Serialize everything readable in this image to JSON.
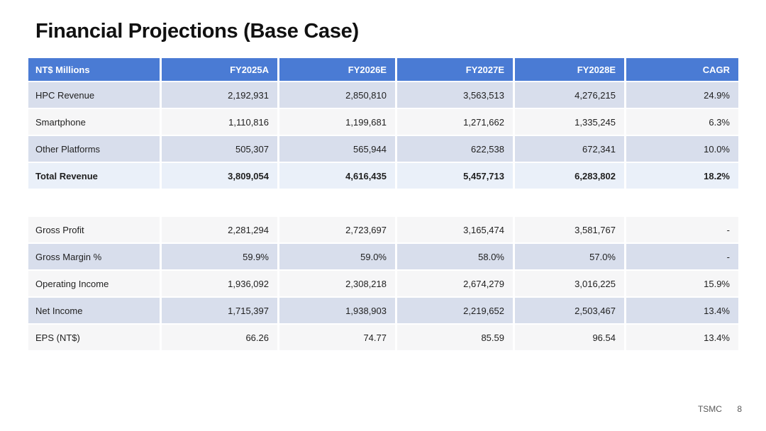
{
  "slide": {
    "title": "Financial Projections (Base Case)",
    "footer": {
      "brand": "TSMC",
      "page": "8"
    }
  },
  "table": {
    "columns": [
      "NT$ Millions",
      "FY2025A",
      "FY2026E",
      "FY2027E",
      "FY2028E",
      "CAGR"
    ],
    "rows": [
      {
        "label": "HPC Revenue",
        "values": [
          "2,192,931",
          "2,850,810",
          "3,563,513",
          "4,276,215",
          "24.9%"
        ]
      },
      {
        "label": "Smartphone",
        "values": [
          "1,110,816",
          "1,199,681",
          "1,271,662",
          "1,335,245",
          "6.3%"
        ]
      },
      {
        "label": "Other Platforms",
        "values": [
          "505,307",
          "565,944",
          "622,538",
          "672,341",
          "10.0%"
        ]
      },
      {
        "label": "Total Revenue",
        "values": [
          "3,809,054",
          "4,616,435",
          "5,457,713",
          "6,283,802",
          "18.2%"
        ]
      },
      {
        "label": "Gross Profit",
        "values": [
          "2,281,294",
          "2,723,697",
          "3,165,474",
          "3,581,767",
          "-"
        ]
      },
      {
        "label": "Gross Margin %",
        "values": [
          "59.9%",
          "59.0%",
          "58.0%",
          "57.0%",
          "-"
        ]
      },
      {
        "label": "Operating Income",
        "values": [
          "1,936,092",
          "2,308,218",
          "2,674,279",
          "3,016,225",
          "15.9%"
        ]
      },
      {
        "label": "Net Income",
        "values": [
          "1,715,397",
          "1,938,903",
          "2,219,652",
          "2,503,467",
          "13.4%"
        ]
      },
      {
        "label": "EPS (NT$)",
        "values": [
          "66.26",
          "74.77",
          "85.59",
          "96.54",
          "13.4%"
        ]
      }
    ]
  }
}
